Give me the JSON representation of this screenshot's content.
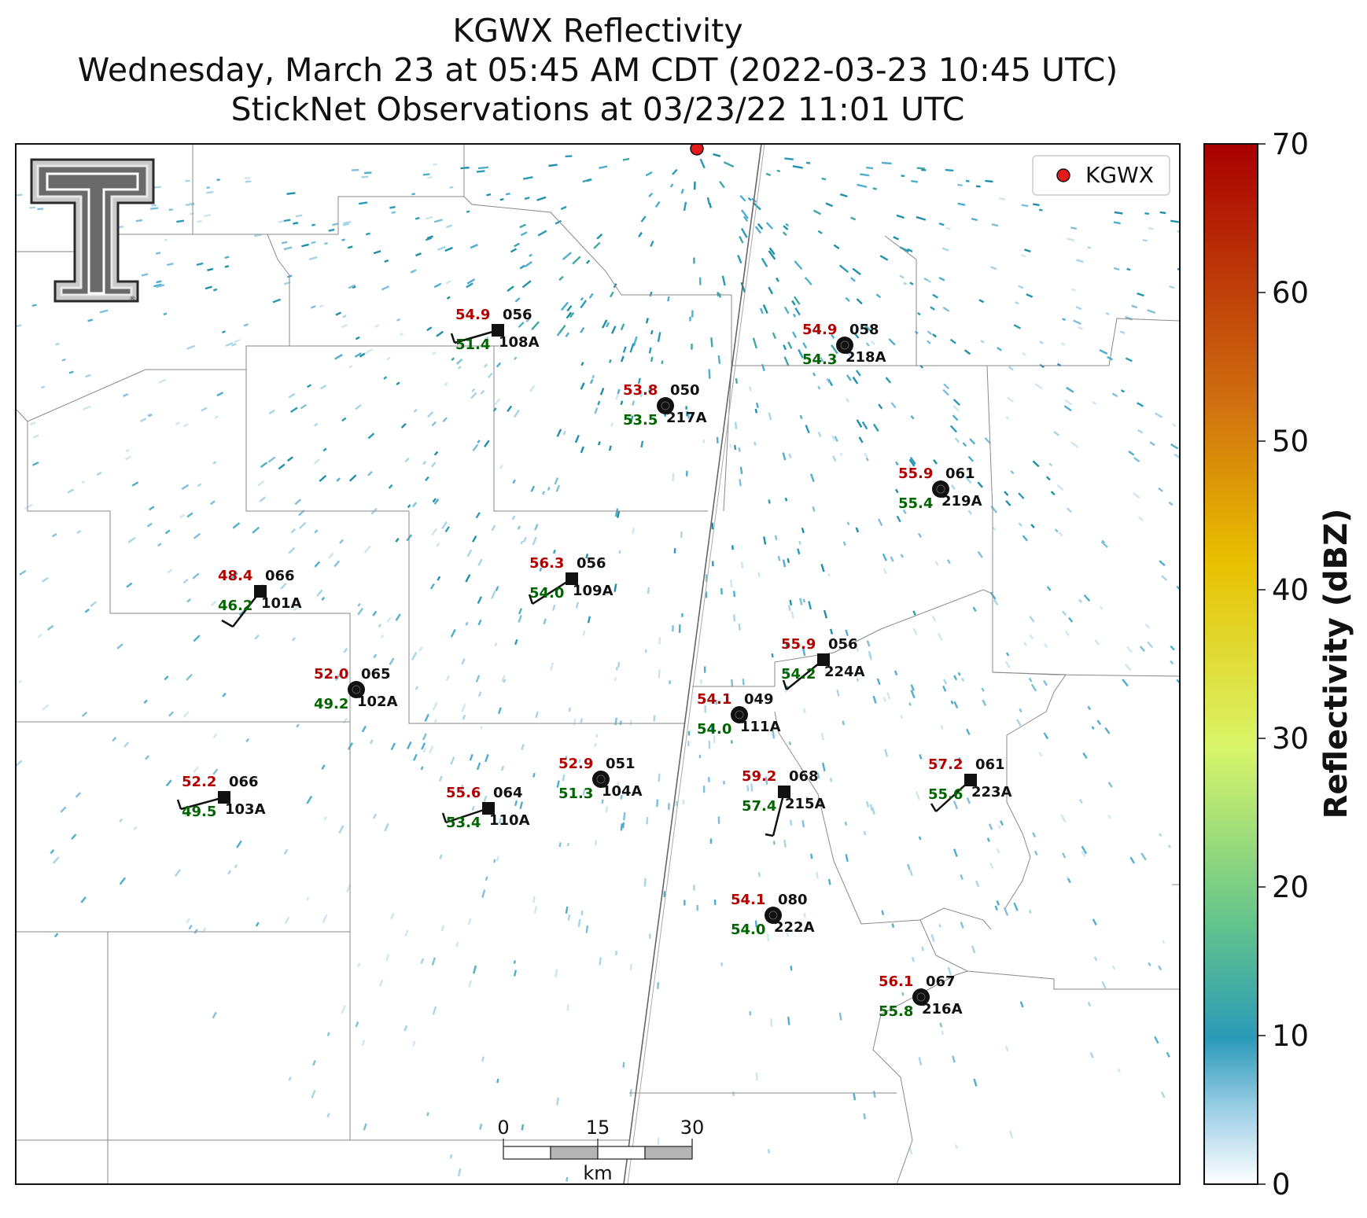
{
  "title": {
    "line1": "KGWX Reflectivity",
    "line2": "Wednesday, March 23 at 05:45 AM CDT (2022-03-23 10:45 UTC)",
    "line3": "StickNet Observations at 03/23/22 11:01 UTC"
  },
  "legend": {
    "label": "KGWX",
    "marker_color": "#e31a1c"
  },
  "colorbar": {
    "title": "Reflectivity (dBZ)",
    "ticks": [
      "0",
      "10",
      "20",
      "30",
      "40",
      "50",
      "60",
      "70"
    ],
    "colors": [
      "#ffffff",
      "#9fd0e6",
      "#2a9ab8",
      "#63c48c",
      "#d9f569",
      "#e8c000",
      "#d07010",
      "#a80000"
    ]
  },
  "scale_bar": {
    "ticks": [
      "0",
      "15",
      "30"
    ],
    "unit": "km"
  },
  "radar_site": {
    "name": "KGWX"
  },
  "stations": [
    {
      "id": "108A",
      "temp": "54.9",
      "dew": "51.4",
      "dir": "056",
      "marker": "square",
      "wind": true
    },
    {
      "id": "218A",
      "temp": "54.9",
      "dew": "54.3",
      "dir": "058",
      "marker": "circle",
      "wind": false
    },
    {
      "id": "217A",
      "temp": "53.8",
      "dew": "53.5",
      "dir": "050",
      "marker": "circle",
      "wind": false
    },
    {
      "id": "219A",
      "temp": "55.9",
      "dew": "55.4",
      "dir": "061",
      "marker": "circle",
      "wind": false
    },
    {
      "id": "101A",
      "temp": "48.4",
      "dew": "46.2",
      "dir": "066",
      "marker": "square",
      "wind": true
    },
    {
      "id": "109A",
      "temp": "56.3",
      "dew": "54.0",
      "dir": "056",
      "marker": "square",
      "wind": true
    },
    {
      "id": "224A",
      "temp": "55.9",
      "dew": "54.2",
      "dir": "056",
      "marker": "square",
      "wind": true
    },
    {
      "id": "102A",
      "temp": "52.0",
      "dew": "49.2",
      "dir": "065",
      "marker": "circle",
      "wind": false
    },
    {
      "id": "111A",
      "temp": "54.1",
      "dew": "54.0",
      "dir": "049",
      "marker": "circle",
      "wind": false
    },
    {
      "id": "103A",
      "temp": "52.2",
      "dew": "49.5",
      "dir": "066",
      "marker": "square",
      "wind": true
    },
    {
      "id": "110A",
      "temp": "55.6",
      "dew": "53.4",
      "dir": "064",
      "marker": "square",
      "wind": true
    },
    {
      "id": "104A",
      "temp": "52.9",
      "dew": "51.3",
      "dir": "051",
      "marker": "circle",
      "wind": false
    },
    {
      "id": "215A",
      "temp": "59.2",
      "dew": "57.4",
      "dir": "068",
      "marker": "square",
      "wind": true
    },
    {
      "id": "223A",
      "temp": "57.2",
      "dew": "55.6",
      "dir": "061",
      "marker": "square",
      "wind": true
    },
    {
      "id": "222A",
      "temp": "54.1",
      "dew": "54.0",
      "dir": "080",
      "marker": "circle",
      "wind": false
    },
    {
      "id": "216A",
      "temp": "56.1",
      "dew": "55.8",
      "dir": "067",
      "marker": "circle",
      "wind": false
    }
  ]
}
